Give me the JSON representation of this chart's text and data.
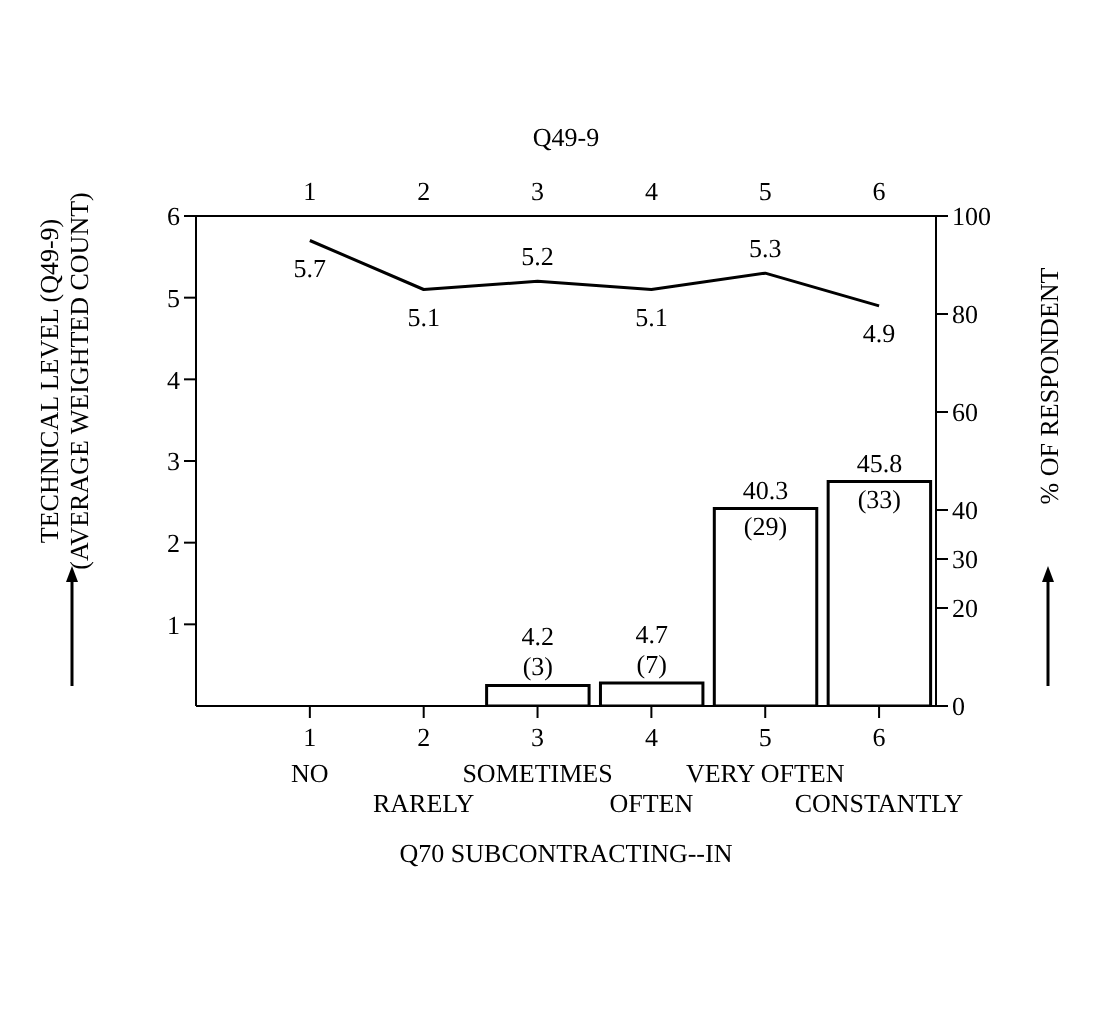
{
  "chart_data": {
    "type": "line",
    "x": [
      1,
      2,
      3,
      4,
      5,
      6
    ],
    "xlim": [
      0,
      6.5
    ],
    "xticks": [
      1,
      2,
      3,
      4,
      5,
      6
    ],
    "x2lim": [
      0,
      6.5
    ],
    "x2ticks": [
      1,
      2,
      3,
      4,
      5,
      6
    ],
    "x2label": "Q49-9",
    "xlabel": "Q70 SUBCONTRACTING--IN",
    "ylabel": "TECHNICAL LEVEL (Q49-9)\n(AVERAGE WEIGHTED COUNT)",
    "y2label": "% OF RESPONDENT",
    "ylim": [
      0,
      6
    ],
    "yticks": [
      1,
      2,
      3,
      4,
      5,
      6
    ],
    "y2lim": [
      0,
      100
    ],
    "y2ticks": [
      0,
      20,
      30,
      40,
      60,
      80,
      100
    ],
    "data_labels": true,
    "annotations": [
      "NO",
      "RARELY",
      "SOMETIMES",
      "OFTEN",
      "VERY OFTEN",
      "CONSTANTLY"
    ],
    "series": [
      {
        "color": "#000000",
        "values": [
          5.7,
          5.1,
          5.2,
          5.1,
          5.3,
          4.9
        ]
      },
      {
        "type": "bar",
        "axis": "y2",
        "x": [
          3,
          4,
          5,
          6
        ],
        "color": "#ffffff",
        "values": [
          4.2,
          4.7,
          40.3,
          45.8
        ],
        "value_labels": [
          "4.2\n(3)",
          "4.7\n(7)",
          "40.3\n(29)",
          "45.8\n(33)"
        ]
      }
    ]
  }
}
